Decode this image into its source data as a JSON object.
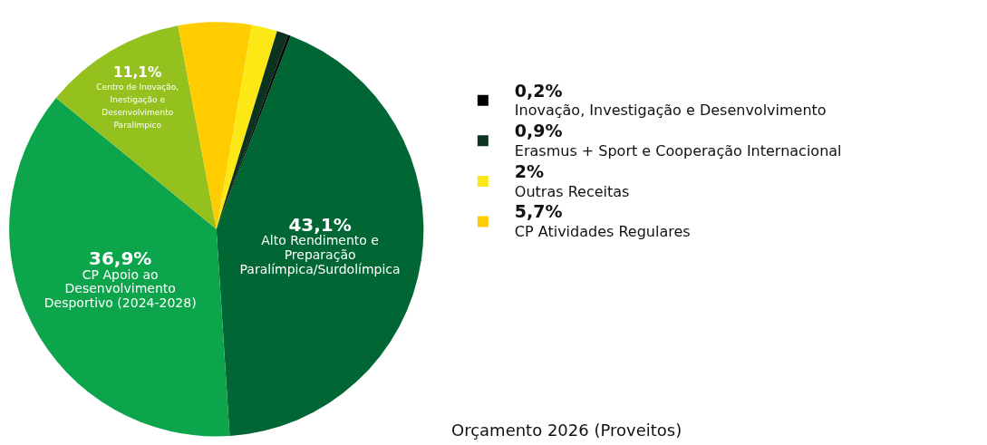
{
  "chart_data": {
    "type": "pie",
    "title": "Orçamento 2026 (Proveitos)",
    "categories": [
      "Alto Rendimento e Preparação Paralímpica/Surdolímpica",
      "CP Apoio ao Desenvolvimento Desportivo (2024-2028)",
      "Centro de Inovação, Inestigação e Desenvolvimento Paralímpico",
      "CP Atividades Regulares",
      "Outras Receitas",
      "Erasmus + Sport e Cooperação Internacional",
      "Inovação, Investigação e Desenvolvimento"
    ],
    "values": [
      43.1,
      36.9,
      11.1,
      5.7,
      2,
      0.9,
      0.2
    ],
    "value_labels": [
      "43,1%",
      "36,9%",
      "11,1%",
      "5,7%",
      "2%",
      "0,9%",
      "0,2%"
    ],
    "colors": [
      "#006633",
      "#0ca54b",
      "#95c11f",
      "#ffcc00",
      "#fce815",
      "#0c3320",
      "#000000"
    ],
    "legend": "right"
  }
}
